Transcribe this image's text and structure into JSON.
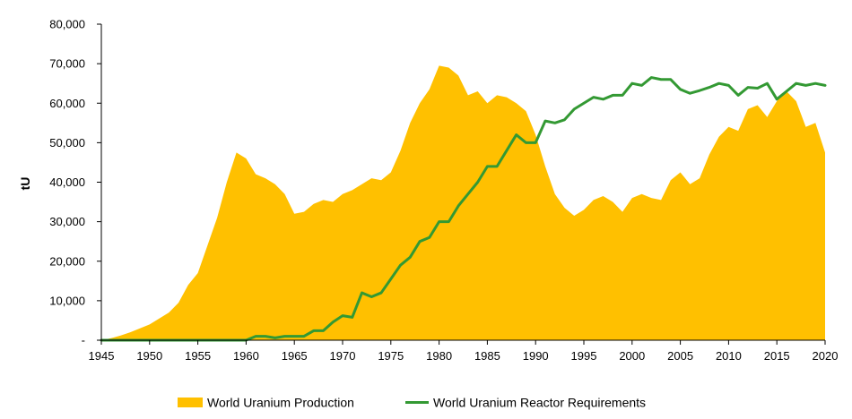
{
  "chart_data": {
    "type": "area",
    "title": "",
    "xlabel": "",
    "ylabel": "tU",
    "xlim": [
      1945,
      2020
    ],
    "ylim": [
      0,
      80000
    ],
    "y_ticks": [
      0,
      10000,
      20000,
      30000,
      40000,
      50000,
      60000,
      70000,
      80000
    ],
    "y_tick_labels": [
      "-",
      "10,000",
      "20,000",
      "30,000",
      "40,000",
      "50,000",
      "60,000",
      "70,000",
      "80,000"
    ],
    "x_ticks": [
      1945,
      1950,
      1955,
      1960,
      1965,
      1970,
      1975,
      1980,
      1985,
      1990,
      1995,
      2000,
      2005,
      2010,
      2015,
      2020
    ],
    "x_tick_labels": [
      "1945",
      "1950",
      "1955",
      "1960",
      "1965",
      "1970",
      "1975",
      "1980",
      "1985",
      "1990",
      "1995",
      "2000",
      "2005",
      "2010",
      "2015",
      "2020"
    ],
    "grid": false,
    "legend_position": "bottom-center",
    "x": [
      1945,
      1946,
      1947,
      1948,
      1949,
      1950,
      1951,
      1952,
      1953,
      1954,
      1955,
      1956,
      1957,
      1958,
      1959,
      1960,
      1961,
      1962,
      1963,
      1964,
      1965,
      1966,
      1967,
      1968,
      1969,
      1970,
      1971,
      1972,
      1973,
      1974,
      1975,
      1976,
      1977,
      1978,
      1979,
      1980,
      1981,
      1982,
      1983,
      1984,
      1985,
      1986,
      1987,
      1988,
      1989,
      1990,
      1991,
      1992,
      1993,
      1994,
      1995,
      1996,
      1997,
      1998,
      1999,
      2000,
      2001,
      2002,
      2003,
      2004,
      2005,
      2006,
      2007,
      2008,
      2009,
      2010,
      2011,
      2012,
      2013,
      2014,
      2015,
      2016,
      2017,
      2018,
      2019,
      2020
    ],
    "series": [
      {
        "name": "World Uranium Production",
        "kind": "area",
        "color": "#FFC000",
        "values": [
          0,
          500,
          1200,
          2000,
          3000,
          4000,
          5500,
          7000,
          9500,
          14000,
          17000,
          24000,
          31000,
          40000,
          47500,
          46000,
          42000,
          41000,
          39500,
          37000,
          32000,
          32500,
          34500,
          35500,
          35000,
          37000,
          38000,
          39500,
          41000,
          40500,
          42500,
          48000,
          55000,
          60000,
          63500,
          69500,
          69000,
          67000,
          62000,
          63000,
          60000,
          62000,
          61500,
          60000,
          58000,
          52000,
          44000,
          37000,
          33500,
          31500,
          33000,
          35500,
          36500,
          35000,
          32500,
          36000,
          37000,
          36000,
          35500,
          40500,
          42500,
          39500,
          41000,
          47000,
          51500,
          54000,
          53000,
          58500,
          59500,
          56500,
          60500,
          63000,
          60500,
          54000,
          55000,
          47500
        ]
      },
      {
        "name": "World Uranium Reactor Requirements",
        "kind": "line",
        "color": "#339933",
        "values": [
          0,
          0,
          0,
          0,
          0,
          0,
          0,
          0,
          0,
          0,
          0,
          0,
          0,
          0,
          0,
          0,
          1000,
          1000,
          600,
          1000,
          1000,
          1000,
          2400,
          2400,
          4600,
          6200,
          5800,
          12000,
          11000,
          12000,
          15500,
          19000,
          21000,
          25000,
          26000,
          30000,
          30000,
          34000,
          37000,
          40000,
          44000,
          44000,
          48000,
          52000,
          50000,
          50000,
          55500,
          55000,
          55800,
          58500,
          60000,
          61500,
          61000,
          62000,
          62000,
          65000,
          64500,
          66500,
          66000,
          66000,
          63500,
          62500,
          63200,
          64000,
          65000,
          64500,
          62000,
          64000,
          63800,
          65000,
          61000,
          63000,
          65000,
          64500,
          65000,
          64500
        ]
      }
    ]
  }
}
